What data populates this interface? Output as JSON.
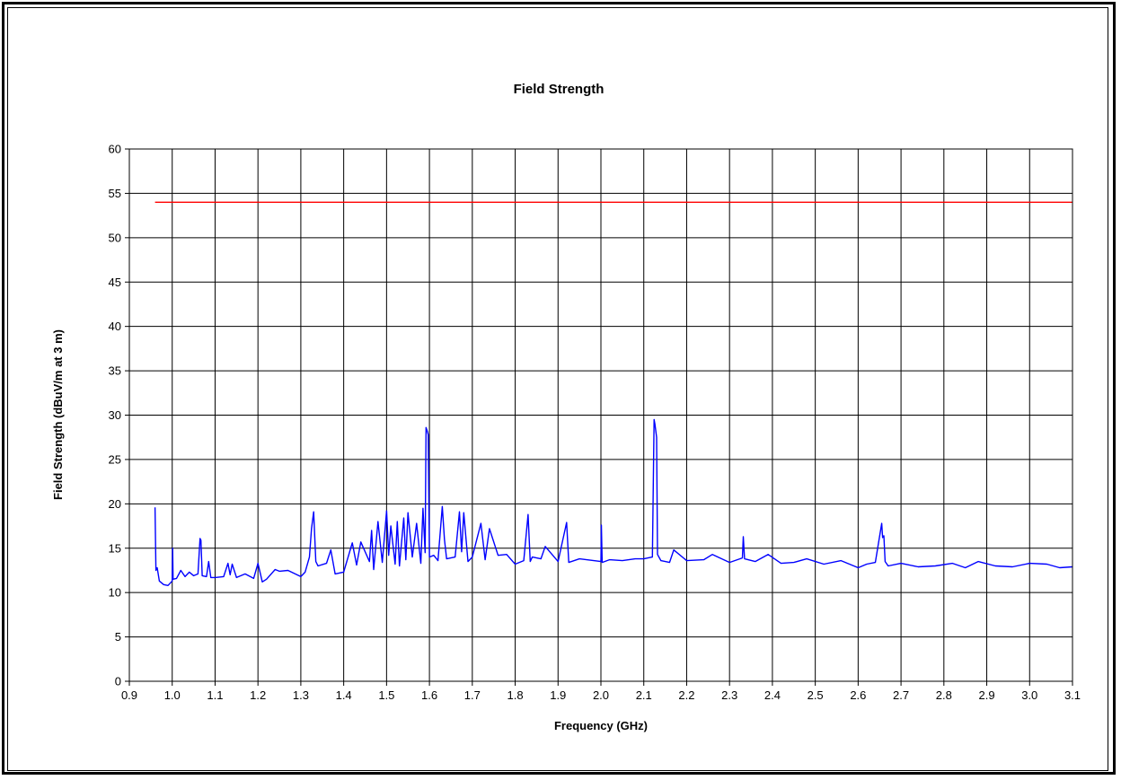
{
  "chart_data": {
    "type": "line",
    "title": "Field Strength",
    "xlabel": "Frequency (GHz)",
    "ylabel": "Field Strength (dBuV/m at 3 m)",
    "xlim": [
      0.9,
      3.1
    ],
    "ylim": [
      0,
      60
    ],
    "x_ticks": [
      0.9,
      1.0,
      1.1,
      1.2,
      1.3,
      1.4,
      1.5,
      1.6,
      1.7,
      1.8,
      1.9,
      2.0,
      2.1,
      2.2,
      2.3,
      2.4,
      2.5,
      2.6,
      2.7,
      2.8,
      2.9,
      3.0,
      3.1
    ],
    "x_tick_labels": [
      "0.9",
      "1.0",
      "1.1",
      "1.2",
      "1.3",
      "1.4",
      "1.5",
      "1.6",
      "1.7",
      "1.8",
      "1.9",
      "2.0",
      "2.1",
      "2.2",
      "2.3",
      "2.4",
      "2.5",
      "2.6",
      "2.7",
      "2.8",
      "2.9",
      "3.0",
      "3.1"
    ],
    "y_ticks": [
      0,
      5,
      10,
      15,
      20,
      25,
      30,
      35,
      40,
      45,
      50,
      55,
      60
    ],
    "y_tick_labels": [
      "0",
      "5",
      "10",
      "15",
      "20",
      "25",
      "30",
      "35",
      "40",
      "45",
      "50",
      "55",
      "60"
    ],
    "grid": true,
    "legend": "none",
    "series": [
      {
        "color": "#ff0000",
        "x": [
          0.96,
          3.1
        ],
        "y": [
          54,
          54
        ]
      },
      {
        "color": "#0000ff",
        "x": [
          0.96,
          0.962,
          0.965,
          0.97,
          0.975,
          0.98,
          0.99,
          1.0,
          1.001,
          1.002,
          1.01,
          1.02,
          1.03,
          1.04,
          1.05,
          1.06,
          1.065,
          1.067,
          1.07,
          1.08,
          1.085,
          1.09,
          1.1,
          1.12,
          1.13,
          1.135,
          1.14,
          1.15,
          1.17,
          1.19,
          1.2,
          1.21,
          1.22,
          1.24,
          1.25,
          1.27,
          1.3,
          1.31,
          1.32,
          1.325,
          1.33,
          1.335,
          1.34,
          1.36,
          1.37,
          1.38,
          1.4,
          1.42,
          1.43,
          1.44,
          1.46,
          1.465,
          1.47,
          1.48,
          1.49,
          1.5,
          1.505,
          1.51,
          1.52,
          1.525,
          1.53,
          1.54,
          1.545,
          1.55,
          1.56,
          1.57,
          1.58,
          1.585,
          1.59,
          1.592,
          1.595,
          1.597,
          1.6,
          1.61,
          1.62,
          1.63,
          1.635,
          1.64,
          1.66,
          1.67,
          1.675,
          1.68,
          1.69,
          1.7,
          1.72,
          1.73,
          1.74,
          1.76,
          1.78,
          1.8,
          1.82,
          1.83,
          1.835,
          1.84,
          1.86,
          1.87,
          1.9,
          1.92,
          1.925,
          1.95,
          2.0,
          2.001,
          2.003,
          2.02,
          2.05,
          2.08,
          2.1,
          2.12,
          2.124,
          2.126,
          2.13,
          2.132,
          2.14,
          2.16,
          2.17,
          2.2,
          2.24,
          2.26,
          2.3,
          2.33,
          2.332,
          2.335,
          2.36,
          2.39,
          2.42,
          2.45,
          2.48,
          2.52,
          2.56,
          2.6,
          2.62,
          2.64,
          2.655,
          2.657,
          2.66,
          2.663,
          2.67,
          2.7,
          2.74,
          2.78,
          2.82,
          2.85,
          2.88,
          2.92,
          2.96,
          3.0,
          3.04,
          3.07,
          3.1
        ],
        "y": [
          19.6,
          12.5,
          12.8,
          11.3,
          11.1,
          10.9,
          10.8,
          11.3,
          15.0,
          11.5,
          11.6,
          12.5,
          11.8,
          12.3,
          11.9,
          12.1,
          16.1,
          15.9,
          11.9,
          11.8,
          13.5,
          11.7,
          11.7,
          11.8,
          13.3,
          12.0,
          13.2,
          11.7,
          12.1,
          11.6,
          13.3,
          11.2,
          11.5,
          12.6,
          12.4,
          12.5,
          11.8,
          12.3,
          14.0,
          17.2,
          19.1,
          13.5,
          13.0,
          13.3,
          14.8,
          12.1,
          12.3,
          15.6,
          13.1,
          15.7,
          13.5,
          17.0,
          12.6,
          18.0,
          13.4,
          19.2,
          14.2,
          17.5,
          13.2,
          18.0,
          13.0,
          18.4,
          13.7,
          19.0,
          14.0,
          17.8,
          13.3,
          19.5,
          14.5,
          28.6,
          28.2,
          27.8,
          14.0,
          14.2,
          13.6,
          19.7,
          16.0,
          13.8,
          14.0,
          19.1,
          14.6,
          19.0,
          13.5,
          14.0,
          17.8,
          13.7,
          17.2,
          14.2,
          14.3,
          13.2,
          13.6,
          18.8,
          13.5,
          14.0,
          13.8,
          15.2,
          13.5,
          17.9,
          13.4,
          13.8,
          13.5,
          17.6,
          13.4,
          13.7,
          13.6,
          13.8,
          13.8,
          14.0,
          29.5,
          29.0,
          27.5,
          14.3,
          13.6,
          13.4,
          14.8,
          13.6,
          13.7,
          14.3,
          13.4,
          13.9,
          16.3,
          13.8,
          13.5,
          14.3,
          13.3,
          13.4,
          13.8,
          13.2,
          13.6,
          12.8,
          13.2,
          13.4,
          17.8,
          16.2,
          16.4,
          13.5,
          13.0,
          13.3,
          12.9,
          13.0,
          13.3,
          12.8,
          13.5,
          13.0,
          12.9,
          13.3,
          13.2,
          12.8,
          12.9
        ]
      }
    ]
  }
}
